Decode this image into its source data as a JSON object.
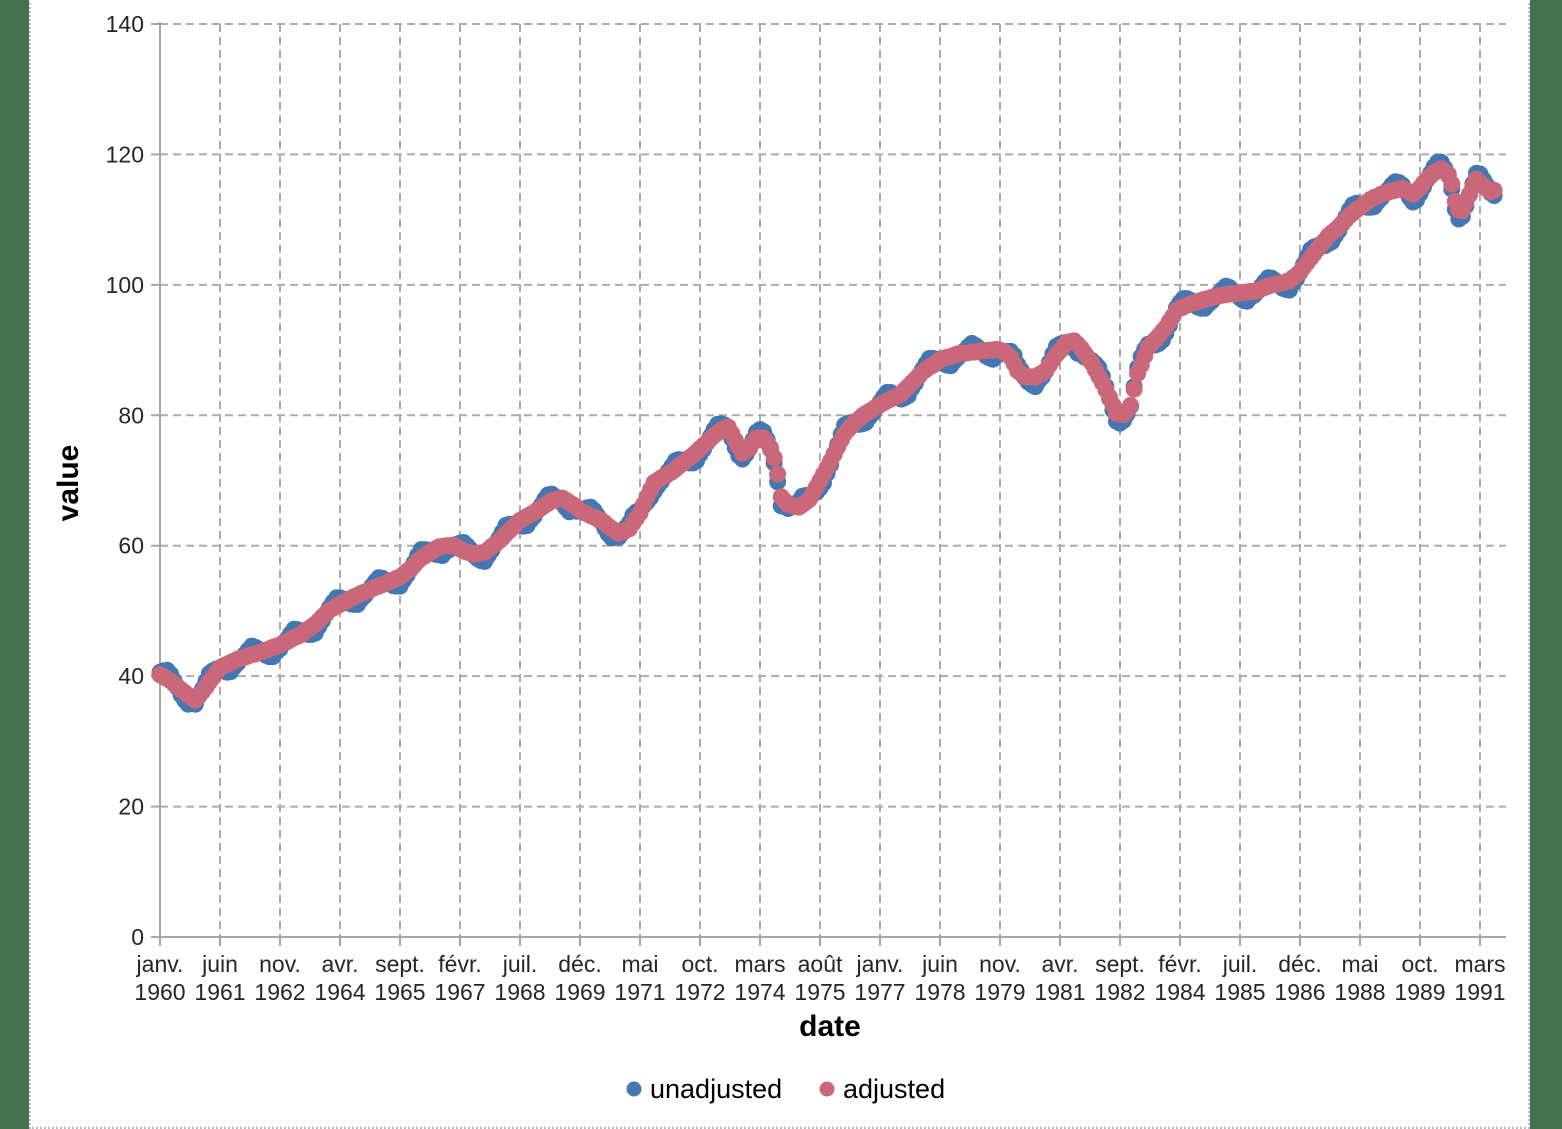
{
  "page": {
    "desktop_color": "#47714E",
    "canvas_color": "#ffffff"
  },
  "chart_data": {
    "type": "scatter",
    "title": "",
    "xlabel": "date",
    "ylabel": "value",
    "grid": "dashed",
    "legend_position": "bottom",
    "ylim": [
      0,
      140
    ],
    "y_ticks": [
      0,
      20,
      40,
      60,
      80,
      100,
      120,
      140
    ],
    "x_start_month": "1960-01",
    "x_end_month": "1991-07",
    "x_frequency": "monthly",
    "n_points": 379,
    "x_tick_month_indices": [
      0,
      17,
      34,
      51,
      68,
      85,
      102,
      119,
      136,
      153,
      170,
      187,
      204,
      221,
      238,
      255,
      272,
      289,
      306,
      323,
      340,
      357,
      374
    ],
    "x_tick_labels": [
      [
        "janv.",
        "1960"
      ],
      [
        "juin",
        "1961"
      ],
      [
        "nov.",
        "1962"
      ],
      [
        "avr.",
        "1964"
      ],
      [
        "sept.",
        "1965"
      ],
      [
        "févr.",
        "1967"
      ],
      [
        "juil.",
        "1968"
      ],
      [
        "déc.",
        "1969"
      ],
      [
        "mai",
        "1971"
      ],
      [
        "oct.",
        "1972"
      ],
      [
        "mars",
        "1974"
      ],
      [
        "août",
        "1975"
      ],
      [
        "janv.",
        "1977"
      ],
      [
        "juin",
        "1978"
      ],
      [
        "nov.",
        "1979"
      ],
      [
        "avr.",
        "1981"
      ],
      [
        "sept.",
        "1982"
      ],
      [
        "févr.",
        "1984"
      ],
      [
        "juil.",
        "1985"
      ],
      [
        "déc.",
        "1986"
      ],
      [
        "mai",
        "1988"
      ],
      [
        "oct.",
        "1989"
      ],
      [
        "mars",
        "1991"
      ]
    ],
    "series": [
      {
        "name": "unadjusted",
        "color": "#4377B2",
        "values": [
          40.6,
          40.8,
          40.9,
          40.3,
          39.3,
          38.2,
          37.1,
          36.3,
          35.7,
          35.8,
          35.7,
          36.9,
          38.0,
          39.2,
          40.4,
          40.8,
          41.1,
          41.1,
          40.8,
          40.6,
          40.7,
          41.4,
          42.0,
          42.7,
          43.3,
          44.0,
          44.6,
          44.4,
          44.1,
          43.6,
          43.2,
          43.0,
          43.0,
          43.7,
          44.2,
          45.0,
          45.7,
          46.5,
          47.2,
          47.1,
          46.9,
          46.6,
          46.4,
          46.4,
          46.6,
          47.6,
          48.5,
          49.5,
          50.5,
          51.3,
          52.0,
          52.0,
          51.8,
          51.4,
          51.1,
          51.0,
          51.0,
          51.8,
          52.3,
          53.0,
          53.8,
          54.5,
          55.1,
          55.0,
          54.7,
          54.3,
          53.9,
          53.8,
          53.8,
          54.7,
          55.5,
          56.4,
          57.4,
          58.5,
          59.4,
          59.4,
          59.3,
          58.9,
          58.7,
          58.6,
          58.5,
          59.1,
          59.4,
          60.0,
          60.2,
          60.4,
          60.5,
          60.0,
          59.4,
          58.5,
          58.0,
          57.7,
          57.6,
          58.5,
          59.3,
          60.2,
          61.1,
          62.1,
          63.1,
          63.3,
          63.3,
          63.2,
          63.1,
          63.0,
          63.1,
          63.9,
          64.5,
          65.4,
          66.2,
          67.1,
          67.8,
          67.9,
          67.5,
          67.0,
          66.5,
          65.8,
          65.2,
          65.4,
          65.3,
          65.3,
          65.5,
          65.8,
          65.9,
          65.4,
          64.6,
          63.7,
          62.7,
          61.8,
          61.2,
          61.4,
          61.3,
          62.0,
          62.8,
          63.5,
          64.7,
          65.2,
          65.5,
          66.1,
          66.7,
          67.4,
          68.3,
          69.1,
          69.8,
          70.6,
          71.4,
          72.2,
          73.0,
          73.2,
          73.1,
          72.8,
          72.7,
          72.7,
          73.0,
          74.0,
          74.8,
          75.8,
          76.8,
          77.8,
          78.6,
          78.7,
          78.5,
          78.0,
          76.4,
          75.0,
          73.8,
          73.3,
          74.0,
          74.9,
          76.2,
          77.4,
          77.8,
          77.5,
          76.3,
          74.8,
          72.7,
          69.8,
          66.1,
          66.0,
          65.7,
          66.1,
          66.4,
          66.8,
          67.6,
          67.7,
          67.6,
          67.9,
          68.2,
          68.8,
          69.6,
          71.1,
          72.4,
          74.0,
          75.5,
          77.1,
          78.5,
          78.8,
          78.9,
          78.8,
          78.6,
          78.7,
          78.9,
          79.7,
          80.3,
          81.2,
          82.0,
          82.8,
          83.5,
          83.5,
          83.2,
          82.8,
          82.5,
          82.7,
          83.0,
          84.1,
          84.9,
          86.0,
          87.0,
          87.9,
          88.7,
          88.7,
          88.6,
          88.3,
          87.9,
          87.7,
          87.6,
          88.3,
          88.8,
          89.4,
          89.9,
          90.5,
          91.0,
          90.7,
          90.3,
          89.7,
          89.1,
          88.8,
          88.6,
          89.2,
          89.4,
          89.7,
          89.8,
          89.8,
          89.2,
          87.8,
          86.9,
          85.8,
          85.1,
          84.7,
          84.4,
          85.3,
          85.9,
          86.8,
          88.1,
          89.4,
          90.6,
          90.9,
          91.1,
          91.0,
          90.5,
          90.2,
          89.5,
          89.4,
          88.9,
          88.7,
          88.4,
          87.9,
          87.3,
          86.0,
          84.4,
          82.6,
          80.8,
          79.1,
          78.8,
          79.2,
          80.2,
          81.4,
          84.4,
          87.3,
          89.0,
          90.1,
          90.9,
          90.8,
          90.8,
          91.0,
          91.5,
          92.6,
          93.8,
          95.1,
          96.5,
          97.3,
          97.9,
          97.9,
          97.6,
          97.1,
          96.6,
          96.4,
          96.4,
          97.0,
          97.5,
          98.1,
          98.7,
          99.3,
          99.8,
          99.6,
          99.1,
          98.5,
          98.0,
          97.6,
          97.5,
          98.1,
          98.4,
          99.0,
          99.8,
          100.5,
          101.1,
          101.0,
          100.6,
          100.0,
          99.5,
          99.3,
          99.2,
          100.2,
          100.9,
          101.9,
          103.1,
          104.3,
          105.4,
          105.8,
          106.0,
          106.0,
          106.0,
          106.3,
          106.6,
          107.5,
          108.3,
          109.4,
          110.4,
          111.5,
          112.3,
          112.5,
          112.4,
          112.1,
          111.9,
          111.9,
          112.0,
          112.7,
          113.3,
          114.0,
          114.6,
          115.3,
          115.8,
          115.7,
          115.3,
          114.3,
          113.4,
          112.7,
          113.0,
          114.0,
          115.0,
          116.1,
          117.1,
          118.1,
          118.8,
          118.8,
          117.9,
          116.8,
          114.7,
          111.6,
          110.1,
          110.5,
          112.1,
          113.8,
          115.5,
          117.1,
          117.0,
          116.1,
          115.2,
          114.1,
          113.7
        ]
      },
      {
        "name": "adjusted",
        "color": "#CA6879",
        "values": [
          40.2,
          39.9,
          39.6,
          39.3,
          38.8,
          38.4,
          37.9,
          37.5,
          37.1,
          36.7,
          36.3,
          37.0,
          37.6,
          38.3,
          39.1,
          39.8,
          40.6,
          41.3,
          41.6,
          41.8,
          42.1,
          42.3,
          42.6,
          42.8,
          42.9,
          43.1,
          43.3,
          43.4,
          43.6,
          43.8,
          44.0,
          44.2,
          44.4,
          44.6,
          44.8,
          45.1,
          45.3,
          45.6,
          45.9,
          46.1,
          46.4,
          46.8,
          47.2,
          47.6,
          48.0,
          48.5,
          49.1,
          49.6,
          50.1,
          50.4,
          50.7,
          51.0,
          51.3,
          51.6,
          51.9,
          52.2,
          52.4,
          52.7,
          52.9,
          53.1,
          53.4,
          53.6,
          53.8,
          54.0,
          54.2,
          54.5,
          54.7,
          55.0,
          55.2,
          55.6,
          56.1,
          56.5,
          57.0,
          57.6,
          58.1,
          58.4,
          58.8,
          59.1,
          59.5,
          59.8,
          59.9,
          60.0,
          60.0,
          60.1,
          59.8,
          59.5,
          59.2,
          59.0,
          58.9,
          58.7,
          58.8,
          58.9,
          59.0,
          59.4,
          59.9,
          60.3,
          60.7,
          61.2,
          61.8,
          62.3,
          62.8,
          63.4,
          63.9,
          64.2,
          64.5,
          64.8,
          65.1,
          65.5,
          65.8,
          66.2,
          66.5,
          66.9,
          67.0,
          67.2,
          67.3,
          67.0,
          66.6,
          66.3,
          65.9,
          65.4,
          65.1,
          64.9,
          64.6,
          64.4,
          64.1,
          63.9,
          63.5,
          63.0,
          62.6,
          62.3,
          61.9,
          62.1,
          62.4,
          62.6,
          63.4,
          64.2,
          65.0,
          66.3,
          67.5,
          68.6,
          69.7,
          70.0,
          70.4,
          70.7,
          71.0,
          71.3,
          71.7,
          72.2,
          72.6,
          73.0,
          73.5,
          73.9,
          74.4,
          74.9,
          75.4,
          75.9,
          76.4,
          76.9,
          77.3,
          77.7,
          78.0,
          78.2,
          77.2,
          76.2,
          75.2,
          74.2,
          74.6,
          75.0,
          75.8,
          76.5,
          76.5,
          76.5,
          75.8,
          75.0,
          73.5,
          71.0,
          67.5,
          66.9,
          66.3,
          66.2,
          66.0,
          65.9,
          66.3,
          66.7,
          67.1,
          68.1,
          69.0,
          70.0,
          71.0,
          72.0,
          73.0,
          74.1,
          75.1,
          76.2,
          77.2,
          77.8,
          78.4,
          79.0,
          79.4,
          79.9,
          80.3,
          80.6,
          80.9,
          81.3,
          81.6,
          81.9,
          82.2,
          82.5,
          82.7,
          83.0,
          83.3,
          83.9,
          84.4,
          85.0,
          85.5,
          86.1,
          86.6,
          87.0,
          87.4,
          87.7,
          88.1,
          88.5,
          88.7,
          88.9,
          89.0,
          89.2,
          89.4,
          89.5,
          89.5,
          89.6,
          89.7,
          89.7,
          89.8,
          89.9,
          89.9,
          90.0,
          90.0,
          90.1,
          90.0,
          89.8,
          89.4,
          88.9,
          87.9,
          86.8,
          86.4,
          86.0,
          85.9,
          85.9,
          85.8,
          86.2,
          86.5,
          86.9,
          87.7,
          88.5,
          89.3,
          89.9,
          90.6,
          91.2,
          91.3,
          91.4,
          90.9,
          90.3,
          89.5,
          88.8,
          88.0,
          87.0,
          86.0,
          85.0,
          83.9,
          82.8,
          81.6,
          80.3,
          80.2,
          80.1,
          80.8,
          81.5,
          84.0,
          86.4,
          87.7,
          89.1,
          90.4,
          91.0,
          91.6,
          92.2,
          92.9,
          93.5,
          94.4,
          95.2,
          96.1,
          96.4,
          96.6,
          96.9,
          97.1,
          97.3,
          97.4,
          97.6,
          97.8,
          97.9,
          98.1,
          98.2,
          98.3,
          98.4,
          98.5,
          98.6,
          98.6,
          98.7,
          98.8,
          98.8,
          98.9,
          99.0,
          99.0,
          99.1,
          99.4,
          99.6,
          99.8,
          100.0,
          100.1,
          100.2,
          100.3,
          100.5,
          100.6,
          101.1,
          101.5,
          102.0,
          102.7,
          103.4,
          104.1,
          104.8,
          105.5,
          106.2,
          106.8,
          107.5,
          108.0,
          108.4,
          108.9,
          109.5,
          110.0,
          110.6,
          111.0,
          111.5,
          111.9,
          112.3,
          112.7,
          113.1,
          113.4,
          113.6,
          113.9,
          114.1,
          114.2,
          114.4,
          114.5,
          114.7,
          114.8,
          114.5,
          114.2,
          113.9,
          114.4,
          114.9,
          115.6,
          116.2,
          116.7,
          117.2,
          117.5,
          117.8,
          117.4,
          117.0,
          115.5,
          112.8,
          111.5,
          111.4,
          112.7,
          113.9,
          115.1,
          116.2,
          115.7,
          115.1,
          114.7,
          114.3,
          114.5
        ]
      }
    ],
    "style": {
      "gridline_color": "#ababab",
      "axis_color": "#a5a5a5",
      "tick_label_color": "#262626",
      "marker_radius": 8.5
    }
  }
}
